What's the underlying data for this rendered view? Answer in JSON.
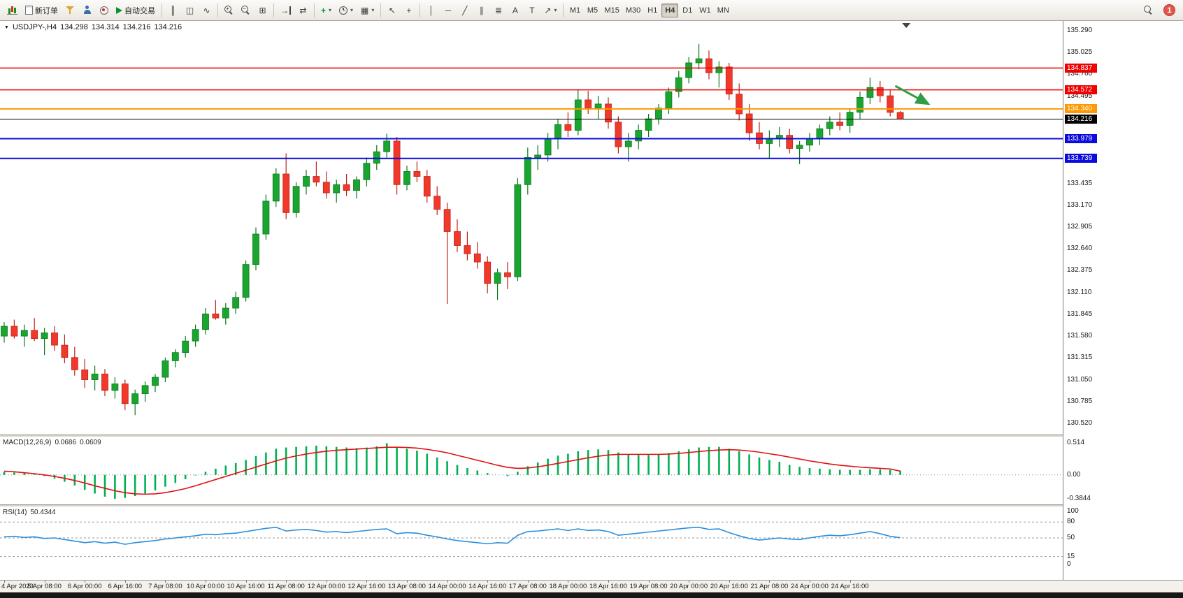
{
  "toolbar": {
    "groups": [
      {
        "items": [
          {
            "name": "new-chart-button",
            "icon": "mini-chart-icon",
            "css": "minichart"
          },
          {
            "name": "new-order-button",
            "icon": "new-order-icon",
            "css": "page",
            "label": "新订单"
          },
          {
            "name": "profiles-button",
            "icon": "funnel-icon",
            "css": "funnel"
          },
          {
            "name": "market-watch-button",
            "icon": "person-icon",
            "css": "person"
          },
          {
            "name": "data-window-button",
            "icon": "record-icon",
            "css": "circ"
          },
          {
            "name": "autotrading-button",
            "icon": "play-icon",
            "css": "play",
            "label": "自动交易"
          }
        ]
      },
      {
        "items": [
          {
            "name": "bar-chart-button",
            "icon": "ohlc-bars-icon",
            "glyph": "║"
          },
          {
            "name": "candlestick-chart-button",
            "icon": "candlestick-icon",
            "glyph": "◫"
          },
          {
            "name": "line-chart-button",
            "icon": "line-chart-icon",
            "glyph": "∿"
          }
        ]
      },
      {
        "items": [
          {
            "name": "zoom-in-button",
            "icon": "zoom-in-icon",
            "css": "lens",
            "glyph": "+"
          },
          {
            "name": "zoom-out-button",
            "icon": "zoom-out-icon",
            "css": "lens",
            "glyph": "−"
          },
          {
            "name": "tile-windows-button",
            "icon": "tile-windows-icon",
            "glyph": "⊞"
          }
        ]
      },
      {
        "items": [
          {
            "name": "auto-scroll-button",
            "icon": "auto-scroll-icon",
            "glyph": "→",
            "css2": "css-endbar"
          },
          {
            "name": "chart-shift-button",
            "icon": "chart-shift-icon",
            "glyph": "⇄"
          }
        ]
      },
      {
        "items": [
          {
            "name": "indicators-button",
            "icon": "add-indicator-icon",
            "glyph": "+",
            "color": "#0a8f2e",
            "bold": true,
            "dropdown": true
          },
          {
            "name": "periods-button",
            "icon": "clock-icon",
            "css": "clock",
            "dropdown": true
          },
          {
            "name": "templates-button",
            "icon": "template-icon",
            "glyph": "▦",
            "dropdown": true
          }
        ]
      },
      {
        "items": [
          {
            "name": "cursor-button",
            "icon": "cursor-icon",
            "glyph": "↖"
          },
          {
            "name": "crosshair-button",
            "icon": "crosshair-icon",
            "glyph": "+"
          }
        ]
      },
      {
        "items": [
          {
            "name": "vertical-line-button",
            "icon": "vertical-line-icon",
            "glyph": "│"
          },
          {
            "name": "horizontal-line-button",
            "icon": "horizontal-line-icon",
            "glyph": "─"
          },
          {
            "name": "trendline-button",
            "icon": "trendline-icon",
            "glyph": "╱"
          },
          {
            "name": "channel-button",
            "icon": "channel-icon",
            "glyph": "∥"
          },
          {
            "name": "fibonacci-button",
            "icon": "fibonacci-icon",
            "glyph": "≣"
          },
          {
            "name": "text-button",
            "icon": "text-icon",
            "glyph": "A"
          },
          {
            "name": "text-label-button",
            "icon": "text-label-icon",
            "glyph": "T"
          },
          {
            "name": "arrows-button",
            "icon": "arrow-object-icon",
            "glyph": "↗",
            "dropdown": true
          }
        ]
      }
    ],
    "timeframes": {
      "items": [
        "M1",
        "M5",
        "M15",
        "M30",
        "H1",
        "H4",
        "D1",
        "W1",
        "MN"
      ],
      "active": "H4"
    },
    "right": {
      "badge": "1"
    }
  },
  "symbol_info": {
    "marker": "▼",
    "symbol": "USDJPY-,H4",
    "open": "134.298",
    "high": "134.314",
    "low": "134.216",
    "close": "134.216"
  },
  "chart_data": {
    "type": "candlestick",
    "title": "USDJPY- H4",
    "price_axis": {
      "view_max": 135.29,
      "view_min": 130.52,
      "ticks": [
        "135.290",
        "135.025",
        "134.760",
        "134.495",
        "134.230",
        "133.965",
        "133.700",
        "133.435",
        "133.170",
        "132.905",
        "132.640",
        "132.375",
        "132.110",
        "131.845",
        "131.580",
        "131.315",
        "131.050",
        "130.785",
        "130.520"
      ]
    },
    "time_labels": [
      "4 Apr 2023",
      "5 Apr 08:00",
      "6 Apr 00:00",
      "6 Apr 16:00",
      "7 Apr 08:00",
      "10 Apr 00:00",
      "10 Apr 16:00",
      "11 Apr 08:00",
      "12 Apr 00:00",
      "12 Apr 16:00",
      "13 Apr 08:00",
      "14 Apr 00:00",
      "14 Apr 16:00",
      "17 Apr 08:00",
      "18 Apr 00:00",
      "18 Apr 16:00",
      "19 Apr 08:00",
      "20 Apr 00:00",
      "20 Apr 16:00",
      "21 Apr 08:00",
      "24 Apr 00:00",
      "24 Apr 16:00"
    ],
    "colors": {
      "up": "#19a52f",
      "down": "#f0392b",
      "up_border": "#0b7a1d",
      "down_border": "#bd2318"
    },
    "candles": [
      [
        131.58,
        131.75,
        131.5,
        131.7
      ],
      [
        131.7,
        131.78,
        131.55,
        131.58
      ],
      [
        131.58,
        131.72,
        131.45,
        131.65
      ],
      [
        131.65,
        131.8,
        131.52,
        131.55
      ],
      [
        131.55,
        131.68,
        131.35,
        131.62
      ],
      [
        131.62,
        131.7,
        131.4,
        131.47
      ],
      [
        131.47,
        131.6,
        131.25,
        131.32
      ],
      [
        131.32,
        131.45,
        131.1,
        131.17
      ],
      [
        131.17,
        131.3,
        130.95,
        131.05
      ],
      [
        131.05,
        131.22,
        130.92,
        131.12
      ],
      [
        131.12,
        131.18,
        130.85,
        130.92
      ],
      [
        130.92,
        131.08,
        130.82,
        131.0
      ],
      [
        131.0,
        131.05,
        130.68,
        130.76
      ],
      [
        130.76,
        130.93,
        130.62,
        130.88
      ],
      [
        130.88,
        131.03,
        130.78,
        130.98
      ],
      [
        130.98,
        131.12,
        130.9,
        131.08
      ],
      [
        131.08,
        131.32,
        131.02,
        131.28
      ],
      [
        131.28,
        131.42,
        131.2,
        131.38
      ],
      [
        131.38,
        131.58,
        131.32,
        131.52
      ],
      [
        131.52,
        131.72,
        131.45,
        131.66
      ],
      [
        131.66,
        131.92,
        131.6,
        131.85
      ],
      [
        131.85,
        132.02,
        131.78,
        131.8
      ],
      [
        131.8,
        131.98,
        131.72,
        131.92
      ],
      [
        131.92,
        132.12,
        131.85,
        132.05
      ],
      [
        132.05,
        132.5,
        132.0,
        132.45
      ],
      [
        132.45,
        132.9,
        132.38,
        132.82
      ],
      [
        132.82,
        133.3,
        132.75,
        133.22
      ],
      [
        133.22,
        133.62,
        133.15,
        133.55
      ],
      [
        133.55,
        133.8,
        133.0,
        133.08
      ],
      [
        133.08,
        133.45,
        133.02,
        133.4
      ],
      [
        133.4,
        133.6,
        133.3,
        133.52
      ],
      [
        133.52,
        133.7,
        133.4,
        133.45
      ],
      [
        133.45,
        133.58,
        133.25,
        133.32
      ],
      [
        133.32,
        133.48,
        133.2,
        133.42
      ],
      [
        133.42,
        133.55,
        133.28,
        133.35
      ],
      [
        133.35,
        133.52,
        133.25,
        133.48
      ],
      [
        133.48,
        133.75,
        133.4,
        133.68
      ],
      [
        133.68,
        133.9,
        133.6,
        133.82
      ],
      [
        133.82,
        134.04,
        133.75,
        133.95
      ],
      [
        133.95,
        134.0,
        133.3,
        133.42
      ],
      [
        133.42,
        133.65,
        133.35,
        133.58
      ],
      [
        133.58,
        133.7,
        133.45,
        133.52
      ],
      [
        133.52,
        133.6,
        133.2,
        133.28
      ],
      [
        133.28,
        133.4,
        133.05,
        133.12
      ],
      [
        133.12,
        133.2,
        131.97,
        132.85
      ],
      [
        132.85,
        133.0,
        132.6,
        132.68
      ],
      [
        132.68,
        132.85,
        132.5,
        132.58
      ],
      [
        132.58,
        132.72,
        132.4,
        132.48
      ],
      [
        132.48,
        132.55,
        132.1,
        132.22
      ],
      [
        132.22,
        132.4,
        132.02,
        132.35
      ],
      [
        132.35,
        132.48,
        132.15,
        132.3
      ],
      [
        132.3,
        133.5,
        132.25,
        133.42
      ],
      [
        133.42,
        133.87,
        133.3,
        133.75
      ],
      [
        133.75,
        133.9,
        133.6,
        133.78
      ],
      [
        133.78,
        134.05,
        133.7,
        133.98
      ],
      [
        133.98,
        134.22,
        133.85,
        134.15
      ],
      [
        134.15,
        134.3,
        134.0,
        134.08
      ],
      [
        134.08,
        134.57,
        134.02,
        134.45
      ],
      [
        134.45,
        134.56,
        134.28,
        134.35
      ],
      [
        134.35,
        134.5,
        134.22,
        134.4
      ],
      [
        134.4,
        134.48,
        134.1,
        134.18
      ],
      [
        134.18,
        134.25,
        133.8,
        133.88
      ],
      [
        133.88,
        134.05,
        133.7,
        133.95
      ],
      [
        133.95,
        134.15,
        133.85,
        134.08
      ],
      [
        134.08,
        134.28,
        134.0,
        134.22
      ],
      [
        134.22,
        134.4,
        134.15,
        134.35
      ],
      [
        134.35,
        134.6,
        134.28,
        134.55
      ],
      [
        134.55,
        134.8,
        134.48,
        134.72
      ],
      [
        134.72,
        134.97,
        134.65,
        134.9
      ],
      [
        134.9,
        135.13,
        134.82,
        134.95
      ],
      [
        134.95,
        135.05,
        134.7,
        134.78
      ],
      [
        134.78,
        134.92,
        134.6,
        134.85
      ],
      [
        134.85,
        134.9,
        134.45,
        134.52
      ],
      [
        134.52,
        134.65,
        134.2,
        134.28
      ],
      [
        134.28,
        134.4,
        133.95,
        134.05
      ],
      [
        134.05,
        134.18,
        133.85,
        133.92
      ],
      [
        133.92,
        134.08,
        133.74,
        133.98
      ],
      [
        133.98,
        134.12,
        133.88,
        134.02
      ],
      [
        134.02,
        134.1,
        133.8,
        133.86
      ],
      [
        133.86,
        133.95,
        133.67,
        133.9
      ],
      [
        133.9,
        134.05,
        133.82,
        133.98
      ],
      [
        133.98,
        134.15,
        133.9,
        134.1
      ],
      [
        134.1,
        134.25,
        134.02,
        134.18
      ],
      [
        134.18,
        134.3,
        134.08,
        134.14
      ],
      [
        134.14,
        134.35,
        134.05,
        134.3
      ],
      [
        134.3,
        134.55,
        134.22,
        134.48
      ],
      [
        134.48,
        134.72,
        134.4,
        134.6
      ],
      [
        134.6,
        134.68,
        134.42,
        134.5
      ],
      [
        134.5,
        134.58,
        134.25,
        134.298
      ],
      [
        134.298,
        134.314,
        134.216,
        134.216
      ]
    ],
    "hlines": [
      {
        "value": 134.837,
        "label": "134.837",
        "color": "#f00000",
        "width": 1.5
      },
      {
        "value": 134.572,
        "label": "134.572",
        "color": "#f00000",
        "width": 1.5
      },
      {
        "value": 134.34,
        "label": "134.340",
        "color": "#ff9900",
        "width": 2
      },
      {
        "value": 133.979,
        "label": "133.979",
        "color": "#0b0bdd",
        "width": 2
      },
      {
        "value": 133.739,
        "label": "133.739",
        "color": "#0b0bdd",
        "width": 2
      }
    ],
    "current_price": {
      "value": 134.216,
      "label": "134.216",
      "color": "#000000"
    },
    "arrow_annotation": {
      "color": "#2f9e44",
      "from_candle": 88.5,
      "from_price": 134.62,
      "to_candle": 91.8,
      "to_price": 134.4,
      "direction": "down-right"
    },
    "shift_marker": {
      "glyph": "▼",
      "candle": 89.6
    },
    "indicators": [
      {
        "name": "MACD",
        "label": "MACD(12,26,9)",
        "values_text": [
          "0.0686",
          "0.0609"
        ],
        "scale_ticks": [
          "0.514",
          "0.00",
          "-0.3844"
        ],
        "scale_values": [
          0.514,
          0,
          -0.3844
        ],
        "view_max": 0.514,
        "view_min": -0.3844,
        "colors": {
          "histogram": "#00b050",
          "signal": "#e01010"
        },
        "histogram": [
          0.05,
          0.04,
          0.03,
          0.01,
          -0.02,
          -0.06,
          -0.11,
          -0.17,
          -0.24,
          -0.3,
          -0.35,
          -0.3844,
          -0.37,
          -0.34,
          -0.3,
          -0.25,
          -0.19,
          -0.13,
          -0.07,
          -0.01,
          0.05,
          0.1,
          0.15,
          0.19,
          0.24,
          0.3,
          0.36,
          0.42,
          0.44,
          0.45,
          0.46,
          0.47,
          0.46,
          0.45,
          0.44,
          0.43,
          0.44,
          0.46,
          0.51,
          0.45,
          0.42,
          0.39,
          0.34,
          0.28,
          0.22,
          0.16,
          0.11,
          0.07,
          0.03,
          0.0,
          -0.02,
          0.05,
          0.14,
          0.2,
          0.26,
          0.31,
          0.34,
          0.38,
          0.4,
          0.41,
          0.4,
          0.36,
          0.33,
          0.32,
          0.32,
          0.33,
          0.35,
          0.38,
          0.41,
          0.44,
          0.45,
          0.45,
          0.42,
          0.38,
          0.33,
          0.28,
          0.24,
          0.21,
          0.16,
          0.13,
          0.11,
          0.1,
          0.09,
          0.08,
          0.08,
          0.08,
          0.09,
          0.09,
          0.08,
          0.0686
        ],
        "signal": [
          0.06,
          0.05,
          0.035,
          0.02,
          0.0,
          -0.025,
          -0.055,
          -0.09,
          -0.13,
          -0.175,
          -0.215,
          -0.255,
          -0.285,
          -0.305,
          -0.31,
          -0.305,
          -0.285,
          -0.255,
          -0.22,
          -0.175,
          -0.125,
          -0.075,
          -0.025,
          0.025,
          0.075,
          0.125,
          0.175,
          0.225,
          0.27,
          0.305,
          0.335,
          0.36,
          0.38,
          0.395,
          0.405,
          0.415,
          0.425,
          0.435,
          0.445,
          0.445,
          0.44,
          0.43,
          0.41,
          0.385,
          0.355,
          0.315,
          0.275,
          0.235,
          0.195,
          0.155,
          0.12,
          0.105,
          0.11,
          0.13,
          0.155,
          0.185,
          0.215,
          0.245,
          0.275,
          0.3,
          0.32,
          0.33,
          0.33,
          0.33,
          0.33,
          0.33,
          0.335,
          0.345,
          0.36,
          0.375,
          0.39,
          0.4,
          0.405,
          0.4,
          0.385,
          0.365,
          0.34,
          0.315,
          0.285,
          0.255,
          0.225,
          0.2,
          0.175,
          0.155,
          0.14,
          0.125,
          0.115,
          0.105,
          0.095,
          0.0609
        ]
      },
      {
        "name": "RSI",
        "label": "RSI(14)",
        "value_text": "50.4344",
        "scale_ticks": [
          "100",
          "80",
          "50",
          "15",
          "0"
        ],
        "scale_values": [
          100,
          80,
          50,
          15,
          0
        ],
        "levels": [
          80,
          50,
          15
        ],
        "color": "#2a8fdd",
        "values": [
          52,
          53,
          51,
          52,
          49,
          50,
          47,
          44,
          41,
          43,
          40,
          42,
          38,
          41,
          43,
          45,
          48,
          50,
          52,
          54,
          57,
          56,
          58,
          59,
          62,
          65,
          68,
          70,
          63,
          65,
          66,
          64,
          61,
          62,
          60,
          62,
          64,
          66,
          67,
          58,
          60,
          59,
          55,
          52,
          48,
          45,
          43,
          41,
          39,
          41,
          40,
          55,
          62,
          63,
          65,
          67,
          64,
          67,
          64,
          65,
          62,
          55,
          57,
          59,
          61,
          63,
          65,
          67,
          69,
          70,
          66,
          67,
          60,
          54,
          49,
          46,
          48,
          50,
          48,
          47,
          50,
          53,
          55,
          54,
          56,
          59,
          62,
          58,
          53,
          50.4344
        ]
      }
    ]
  }
}
